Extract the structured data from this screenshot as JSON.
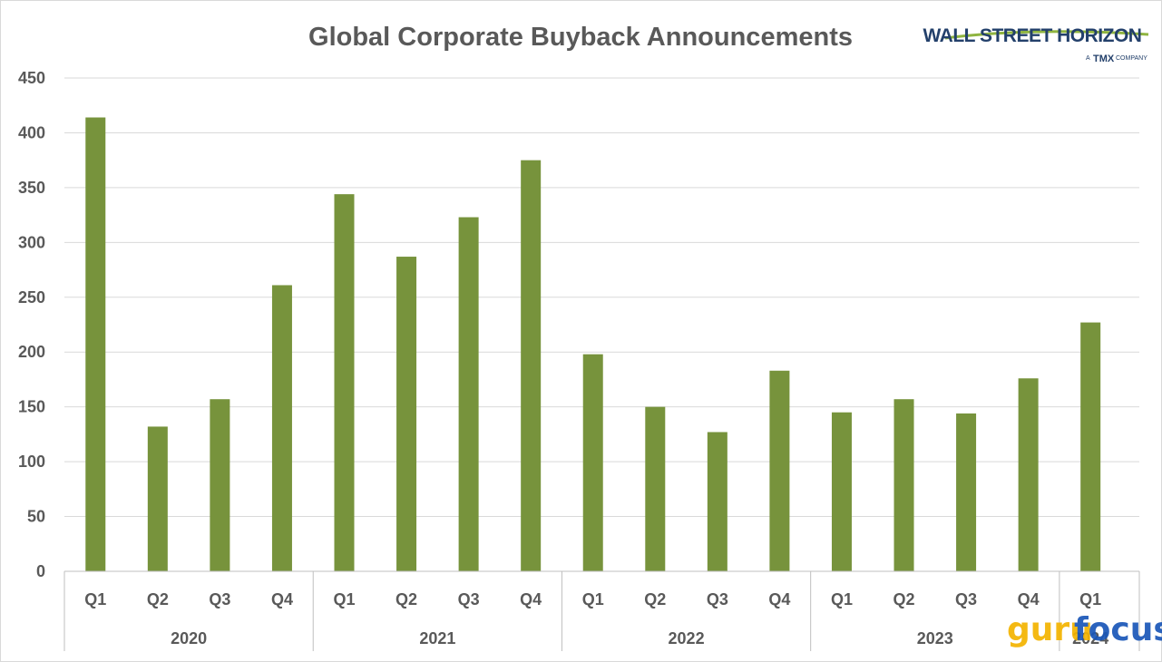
{
  "chart_data": {
    "type": "bar",
    "title": "Global Corporate Buyback Announcements",
    "xlabel": "",
    "ylabel": "",
    "ylim": [
      0,
      450
    ],
    "yticks": [
      0,
      50,
      100,
      150,
      200,
      250,
      300,
      350,
      400,
      450
    ],
    "grid": true,
    "legend": "none",
    "bar_color": "#77933c",
    "categories": [
      "Q1",
      "Q2",
      "Q3",
      "Q4",
      "Q1",
      "Q2",
      "Q3",
      "Q4",
      "Q1",
      "Q2",
      "Q3",
      "Q4",
      "Q1",
      "Q2",
      "Q3",
      "Q4",
      "Q1"
    ],
    "groups": [
      {
        "label": "2020",
        "count": 4
      },
      {
        "label": "2021",
        "count": 4
      },
      {
        "label": "2022",
        "count": 4
      },
      {
        "label": "2023",
        "count": 4
      },
      {
        "label": "2024",
        "count": 1
      }
    ],
    "values": [
      414,
      132,
      157,
      261,
      344,
      287,
      323,
      375,
      198,
      150,
      127,
      183,
      145,
      157,
      144,
      176,
      227
    ]
  },
  "branding": {
    "logo_main": "WALL STREET HORIZON",
    "logo_sub_a": "A",
    "logo_sub_tmx": "TMX",
    "logo_sub_company": "COMPANY",
    "watermark_a": "guru",
    "watermark_b": "focus",
    "colors": {
      "navy": "#23406b",
      "green": "#8fb440",
      "guru": "#f4b400",
      "focus": "#1a56b8"
    }
  }
}
